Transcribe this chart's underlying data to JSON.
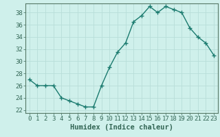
{
  "x": [
    0,
    1,
    2,
    3,
    4,
    5,
    6,
    7,
    8,
    9,
    10,
    11,
    12,
    13,
    14,
    15,
    16,
    17,
    18,
    19,
    20,
    21,
    22,
    23
  ],
  "y": [
    27,
    26,
    26,
    26,
    24,
    23.5,
    23,
    22.5,
    22.5,
    26,
    29,
    31.5,
    33,
    36.5,
    37.5,
    39,
    38,
    39,
    38.5,
    38,
    35.5,
    34,
    33,
    31
  ],
  "line_color": "#1a7a6e",
  "marker": "+",
  "marker_size": 4,
  "marker_lw": 1.0,
  "line_width": 1.0,
  "bg_color": "#cff0eb",
  "grid_color": "#b8ddd8",
  "xlabel": "Humidex (Indice chaleur)",
  "xlim": [
    -0.5,
    23.5
  ],
  "ylim": [
    21.5,
    39.5
  ],
  "yticks": [
    22,
    24,
    26,
    28,
    30,
    32,
    34,
    36,
    38
  ],
  "xticks": [
    0,
    1,
    2,
    3,
    4,
    5,
    6,
    7,
    8,
    9,
    10,
    11,
    12,
    13,
    14,
    15,
    16,
    17,
    18,
    19,
    20,
    21,
    22,
    23
  ],
  "tick_fontsize": 6.5,
  "xlabel_fontsize": 7.5,
  "axis_color": "#336655",
  "spine_color": "#557766"
}
